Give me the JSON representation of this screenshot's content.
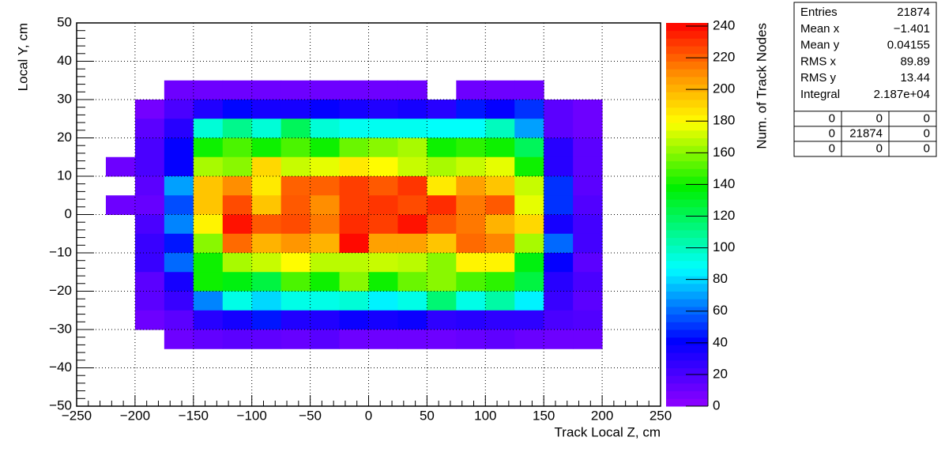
{
  "chart_data": {
    "type": "heatmap",
    "x_label": "Track Local Z, cm",
    "y_label": "Local Y, cm",
    "z_label": "Num. of Track Nodes",
    "xlim": [
      -250,
      250
    ],
    "ylim": [
      -50,
      50
    ],
    "zlim": [
      0,
      242
    ],
    "xticks": [
      {
        "value": -250,
        "label": "−250"
      },
      {
        "value": -200,
        "label": "−200"
      },
      {
        "value": -150,
        "label": "−150"
      },
      {
        "value": -100,
        "label": "−100"
      },
      {
        "value": -50,
        "label": "−50"
      },
      0,
      50,
      100,
      150,
      200,
      250
    ],
    "yticks": [
      {
        "value": -50,
        "label": "−50"
      },
      {
        "value": -40,
        "label": "−40"
      },
      {
        "value": -30,
        "label": "−30"
      },
      {
        "value": -20,
        "label": "−20"
      },
      {
        "value": -10,
        "label": "−10"
      },
      0,
      10,
      20,
      30,
      40,
      50
    ],
    "zticks": [
      0,
      20,
      40,
      60,
      80,
      100,
      120,
      140,
      160,
      180,
      200,
      220,
      240
    ],
    "grid": true,
    "x_bins": [
      -225,
      -200,
      -175,
      -150,
      -125,
      -100,
      -75,
      -50,
      -25,
      0,
      25,
      50,
      75,
      100,
      125,
      150,
      175,
      200
    ],
    "y_bins": [
      35,
      30,
      25,
      20,
      15,
      10,
      5,
      0,
      -5,
      -10,
      -15,
      -20,
      -25,
      -30,
      -35
    ],
    "z": [
      [
        null,
        null,
        10,
        10,
        10,
        10,
        10,
        10,
        10,
        10,
        10,
        null,
        10,
        10,
        10,
        null,
        null
      ],
      [
        null,
        8,
        20,
        32,
        42,
        35,
        35,
        40,
        35,
        32,
        35,
        30,
        45,
        40,
        50,
        15,
        10
      ],
      [
        null,
        15,
        30,
        95,
        110,
        95,
        120,
        95,
        90,
        90,
        90,
        88,
        88,
        100,
        70,
        15,
        10
      ],
      [
        null,
        20,
        40,
        140,
        150,
        140,
        150,
        140,
        155,
        160,
        165,
        140,
        145,
        140,
        120,
        30,
        15
      ],
      [
        10,
        20,
        40,
        165,
        160,
        190,
        170,
        175,
        185,
        180,
        170,
        165,
        170,
        175,
        140,
        30,
        15
      ],
      [
        null,
        15,
        70,
        195,
        210,
        185,
        220,
        220,
        228,
        222,
        230,
        185,
        205,
        195,
        170,
        50,
        15
      ],
      [
        10,
        12,
        55,
        195,
        225,
        195,
        222,
        210,
        228,
        230,
        225,
        232,
        215,
        222,
        175,
        50,
        18
      ],
      [
        null,
        20,
        65,
        182,
        238,
        222,
        225,
        215,
        232,
        228,
        238,
        222,
        215,
        200,
        190,
        35,
        22
      ],
      [
        null,
        25,
        45,
        160,
        218,
        200,
        208,
        200,
        240,
        205,
        205,
        195,
        218,
        212,
        165,
        60,
        22
      ],
      [
        null,
        25,
        60,
        140,
        165,
        170,
        180,
        168,
        168,
        170,
        168,
        160,
        182,
        182,
        135,
        40,
        15
      ],
      [
        null,
        15,
        35,
        140,
        135,
        125,
        150,
        140,
        160,
        140,
        155,
        160,
        150,
        145,
        125,
        30,
        20
      ],
      [
        null,
        15,
        25,
        65,
        92,
        80,
        92,
        92,
        95,
        85,
        92,
        115,
        92,
        105,
        85,
        25,
        15
      ],
      [
        null,
        10,
        15,
        30,
        35,
        45,
        32,
        32,
        38,
        35,
        38,
        28,
        30,
        28,
        28,
        20,
        18
      ],
      [
        null,
        null,
        10,
        13,
        15,
        14,
        12,
        16,
        10,
        10,
        10,
        10,
        12,
        14,
        11,
        10,
        10
      ]
    ],
    "stats": [
      {
        "label": "Entries",
        "value": "21874"
      },
      {
        "label": "Mean x",
        "value": "−1.401"
      },
      {
        "label": "Mean y",
        "value": "0.04155"
      },
      {
        "label": "RMS x",
        "value": "89.89"
      },
      {
        "label": "RMS y",
        "value": "13.44"
      },
      {
        "label": "Integral",
        "value": "2.187e+04"
      }
    ],
    "overflow_table": [
      [
        "0",
        "0",
        "0"
      ],
      [
        "0",
        "21874",
        "0"
      ],
      [
        "0",
        "0",
        "0"
      ]
    ]
  }
}
